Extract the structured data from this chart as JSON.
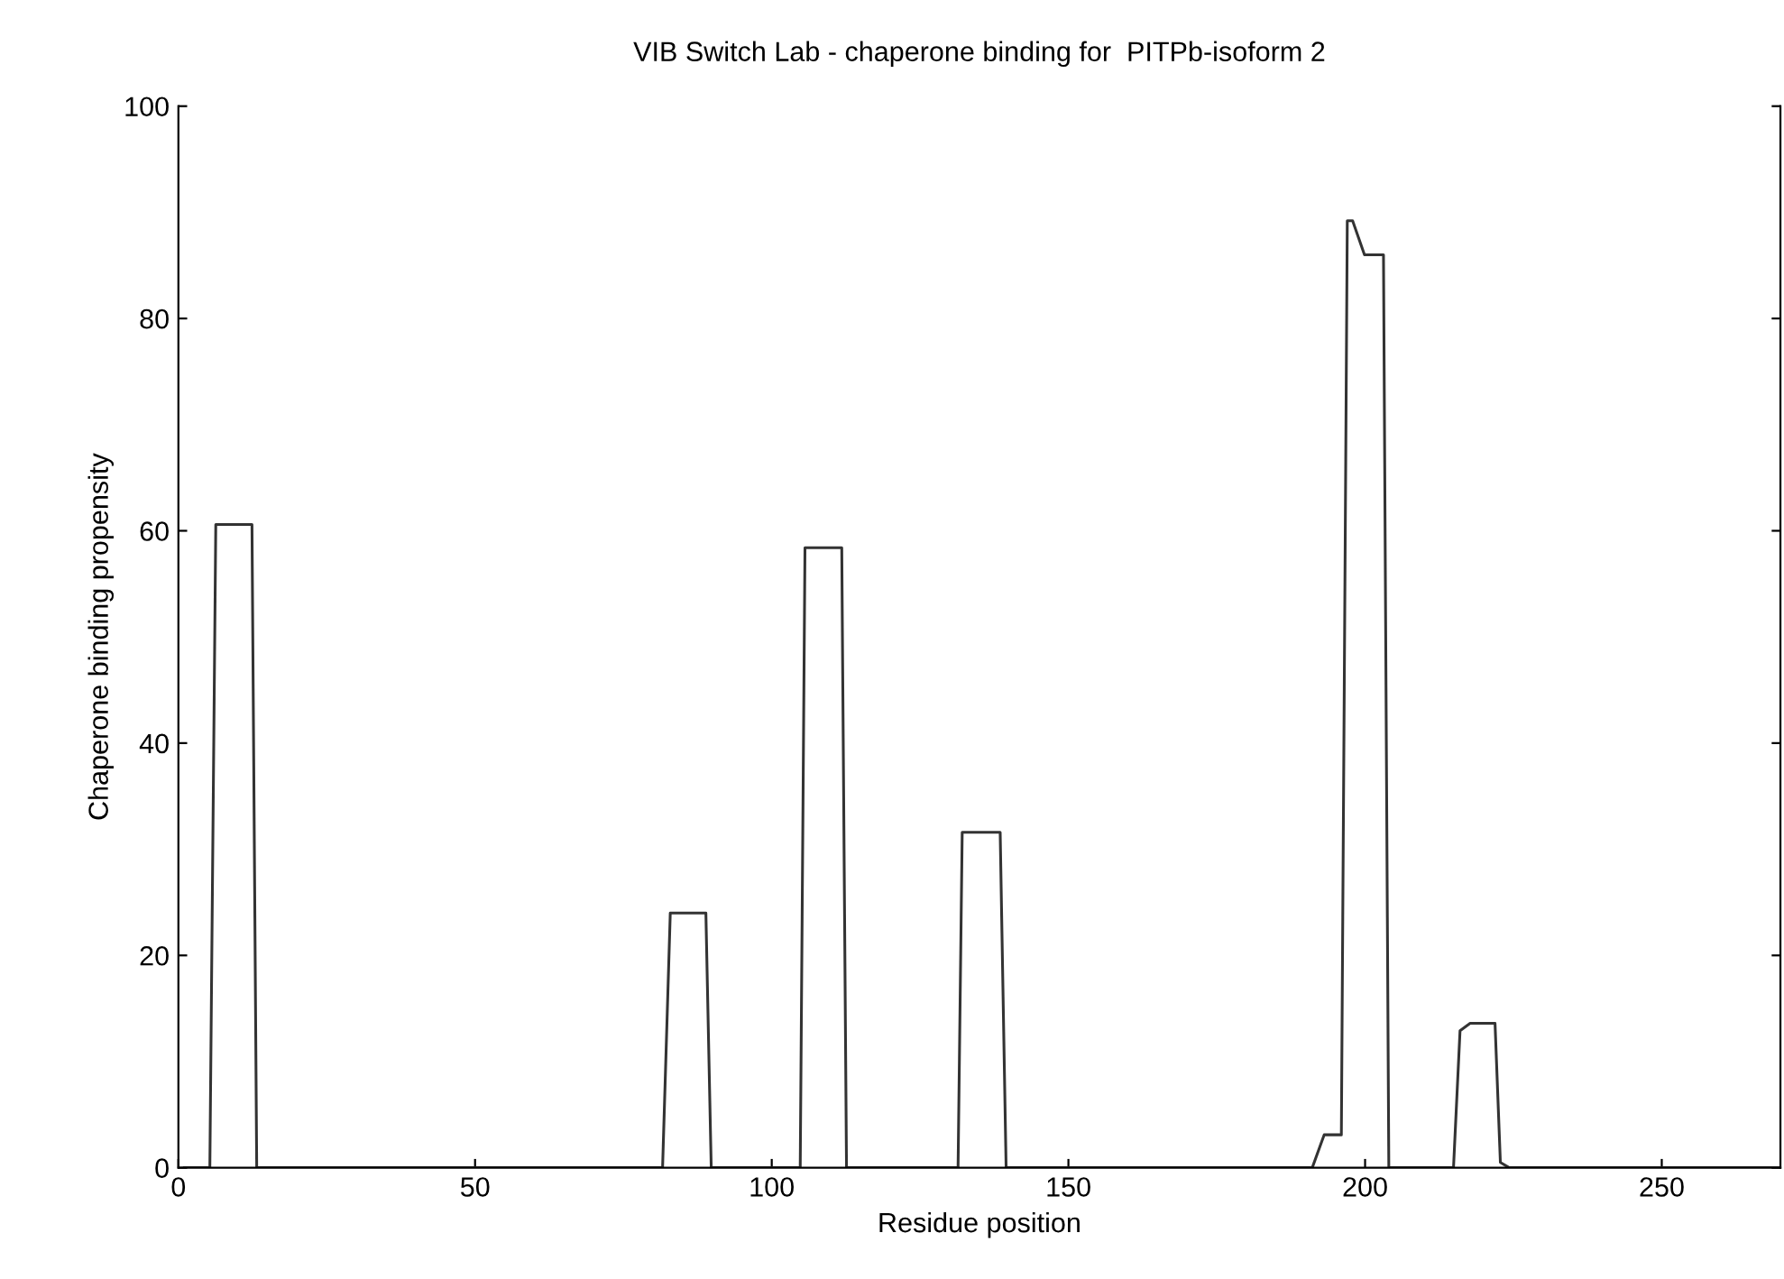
{
  "chart_data": {
    "type": "line",
    "title": "VIB Switch Lab - chaperone binding for  PITPb-isoform 2",
    "xlabel": "Residue position",
    "ylabel": "Chaperone binding propensity",
    "x": [
      1,
      5.3,
      6.3,
      12.4,
      13.2,
      81.6,
      82.9,
      88.9,
      89.8,
      104.8,
      105.6,
      111.8,
      112.6,
      131.4,
      132.1,
      138.5,
      139.5,
      191.1,
      193.1,
      196.0,
      197.0,
      197.9,
      199.9,
      203.1,
      204.0,
      214.9,
      216.0,
      217.7,
      221.9,
      222.8,
      224.3,
      270
    ],
    "values": [
      0,
      0,
      60.6,
      60.6,
      0,
      0,
      24.0,
      24.0,
      0,
      0,
      58.4,
      58.4,
      0,
      0,
      31.6,
      31.6,
      0,
      0,
      3.1,
      3.1,
      89.2,
      89.2,
      86.0,
      86.0,
      0,
      0,
      12.9,
      13.6,
      13.6,
      0.5,
      0,
      0
    ],
    "color": "#333333",
    "xlim": [
      0,
      270
    ],
    "ylim": [
      0,
      100
    ],
    "xticks": [
      0,
      50,
      100,
      150,
      200,
      250
    ],
    "yticks": [
      0,
      20,
      40,
      60,
      80,
      100
    ],
    "grid": false,
    "legend": false,
    "marker": "none",
    "line_style": "solid"
  }
}
